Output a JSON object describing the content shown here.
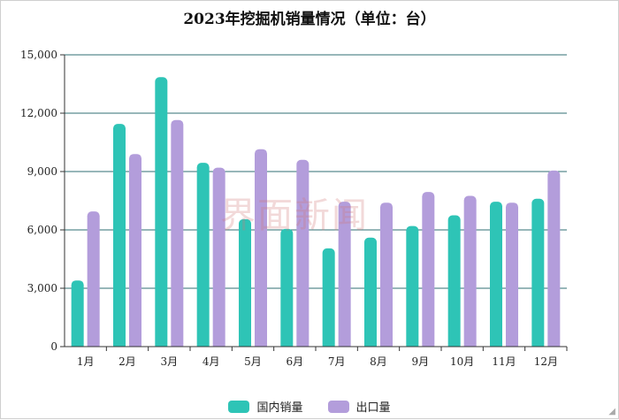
{
  "chart_data": {
    "type": "bar",
    "title": "2023年挖掘机销量情况（单位：台）",
    "categories": [
      "1月",
      "2月",
      "3月",
      "4月",
      "5月",
      "6月",
      "7月",
      "8月",
      "9月",
      "10月",
      "11月",
      "12月"
    ],
    "series": [
      {
        "name": "国内销量",
        "color": "#2ec4b6",
        "values": [
          3400,
          11450,
          13850,
          9450,
          6550,
          6050,
          5050,
          5600,
          6200,
          6750,
          7450,
          7600
        ]
      },
      {
        "name": "出口量",
        "color": "#b39ddb",
        "values": [
          6950,
          9900,
          11650,
          9200,
          10150,
          9600,
          7450,
          7400,
          7950,
          7750,
          7400,
          9050
        ]
      }
    ],
    "ylim": [
      0,
      15000
    ],
    "yticks": [
      0,
      3000,
      6000,
      9000,
      12000,
      15000
    ],
    "ytick_labels": [
      "0",
      "3,000",
      "6,000",
      "9,000",
      "12,000",
      "15,000"
    ],
    "grid": true,
    "legend_position": "bottom"
  },
  "watermark": "界面新闻",
  "legend_colors": {
    "domestic": "#2ec4b6",
    "export": "#b39ddb"
  }
}
